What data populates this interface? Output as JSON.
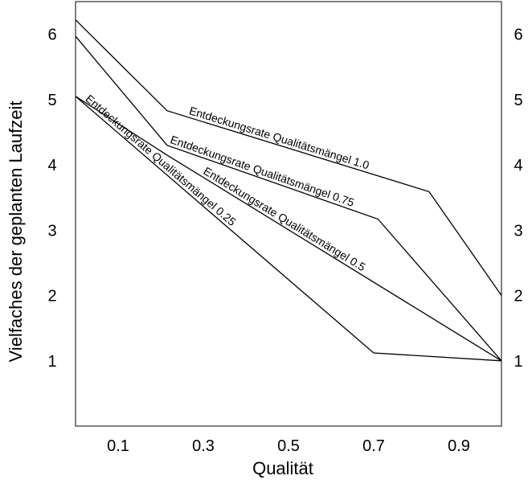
{
  "chart_data": {
    "type": "line",
    "title": "",
    "xlabel": "Qualität",
    "ylabel": "Vielfaches der geplanten Laufzeit",
    "xlim": [
      0.0,
      1.0
    ],
    "ylim": [
      0.0,
      6.5
    ],
    "x_ticks": [
      0.1,
      0.3,
      0.5,
      0.7,
      0.9
    ],
    "x_tick_labels": [
      "0.1",
      "0.3",
      "0.5",
      "0.7",
      "0.9"
    ],
    "y_ticks": [
      1,
      2,
      3,
      4,
      5,
      6
    ],
    "y_tick_labels": [
      "1",
      "2",
      "3",
      "4",
      "5",
      "6"
    ],
    "y_ticks_right": [
      1,
      2,
      3,
      4,
      5,
      6
    ],
    "grid": false,
    "legend": "none",
    "colors": {
      "line": "#000000",
      "frame": "#000000",
      "background": "#ffffff"
    },
    "series": [
      {
        "name": "Entdeckungsrate Qualitätsmängel 1.0",
        "x": [
          0.0,
          0.215,
          0.83,
          1.0
        ],
        "y": [
          6.22,
          4.83,
          3.59,
          2.0
        ]
      },
      {
        "name": "Entdeckungsrate Qualitätsmängel 0.75",
        "x": [
          0.0,
          0.215,
          0.71,
          1.0
        ],
        "y": [
          5.97,
          4.3,
          3.17,
          1.0
        ]
      },
      {
        "name": "Entdeckungsrate Qualitätsmängel 0.5",
        "x": [
          0.0,
          0.215,
          1.0
        ],
        "y": [
          5.05,
          4.15,
          1.0
        ]
      },
      {
        "name": "Entdeckungsrate Qualitätsmängel 0.25",
        "x": [
          0.0,
          0.7,
          1.0
        ],
        "y": [
          5.05,
          1.12,
          1.0
        ]
      }
    ]
  }
}
